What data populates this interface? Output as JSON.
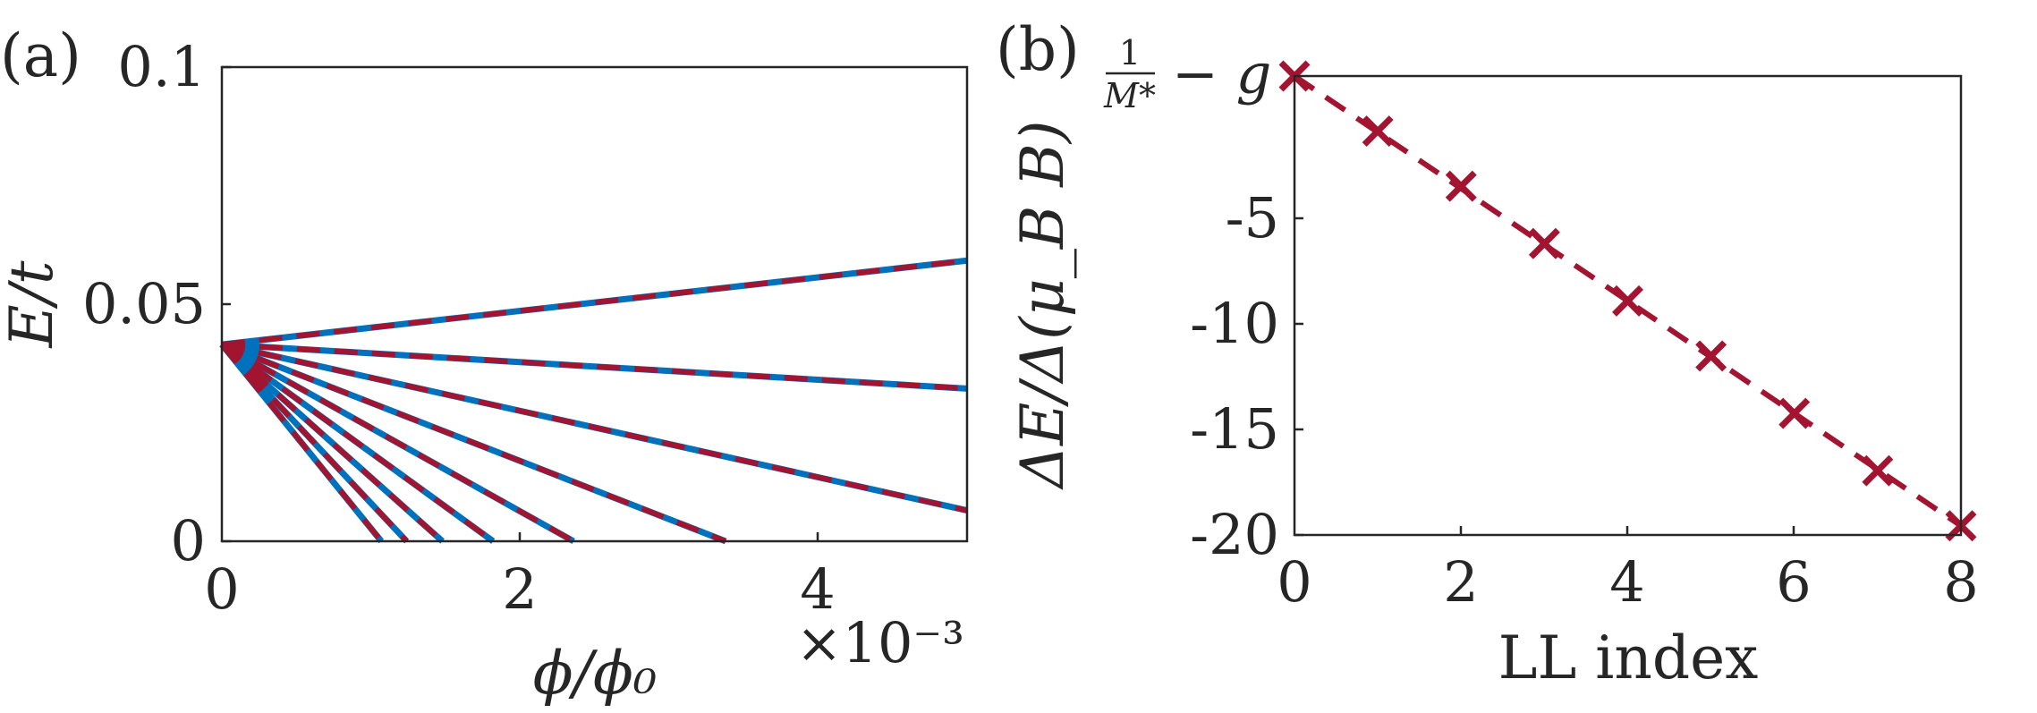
{
  "chart_data": [
    {
      "type": "line",
      "panel_label": "(a)",
      "xlabel": "ϕ/ϕ₀",
      "ylabel": "E/t",
      "x_multiplier": "×10⁻³",
      "xlim": [
        0,
        5
      ],
      "ylim": [
        0,
        0.1
      ],
      "xticks": [
        "0",
        "2",
        "4"
      ],
      "yticks": [
        "0",
        "0.05",
        "0.1"
      ],
      "colors": {
        "numeric": "#0072BD",
        "analytic": "#A2142F"
      },
      "series": [
        {
          "points": [
            [
              0,
              0.0415
            ],
            [
              5,
              0.0592
            ]
          ]
        },
        {
          "points": [
            [
              0,
              0.0415
            ],
            [
              5,
              0.0322
            ]
          ]
        },
        {
          "points": [
            [
              0,
              0.0415
            ],
            [
              5,
              0.0065
            ]
          ]
        },
        {
          "points": [
            [
              0,
              0.0415
            ],
            [
              3.38,
              0
            ]
          ]
        },
        {
          "points": [
            [
              0,
              0.0415
            ],
            [
              2.36,
              0
            ]
          ]
        },
        {
          "points": [
            [
              0,
              0.0415
            ],
            [
              1.82,
              0
            ]
          ]
        },
        {
          "points": [
            [
              0,
              0.0415
            ],
            [
              1.48,
              0
            ]
          ]
        },
        {
          "points": [
            [
              0,
              0.0415
            ],
            [
              1.24,
              0
            ]
          ]
        },
        {
          "points": [
            [
              0,
              0.0415
            ],
            [
              1.07,
              0
            ]
          ]
        }
      ]
    },
    {
      "type": "scatter",
      "panel_label": "(b)",
      "xlabel": "LL index",
      "ylabel": "ΔE/Δ(μ_B B)",
      "top_tick_label": {
        "frac_num": "1",
        "frac_den": "M*",
        "rest": "− g"
      },
      "xlim": [
        0,
        8
      ],
      "ylim": [
        -20,
        0
      ],
      "xticks": [
        "0",
        "2",
        "4",
        "6",
        "8"
      ],
      "yticks": [
        "-20",
        "-15",
        "-10",
        "-5"
      ],
      "x": [
        0,
        1,
        2,
        3,
        4,
        5,
        6,
        7,
        8
      ],
      "y": [
        0,
        -2.4,
        -4.8,
        -7.3,
        -9.8,
        -12.2,
        -14.7,
        -17.2,
        -19.6
      ],
      "fit_line": [
        [
          0,
          0
        ],
        [
          8,
          -19.6
        ]
      ],
      "color": "#A2142F"
    }
  ]
}
